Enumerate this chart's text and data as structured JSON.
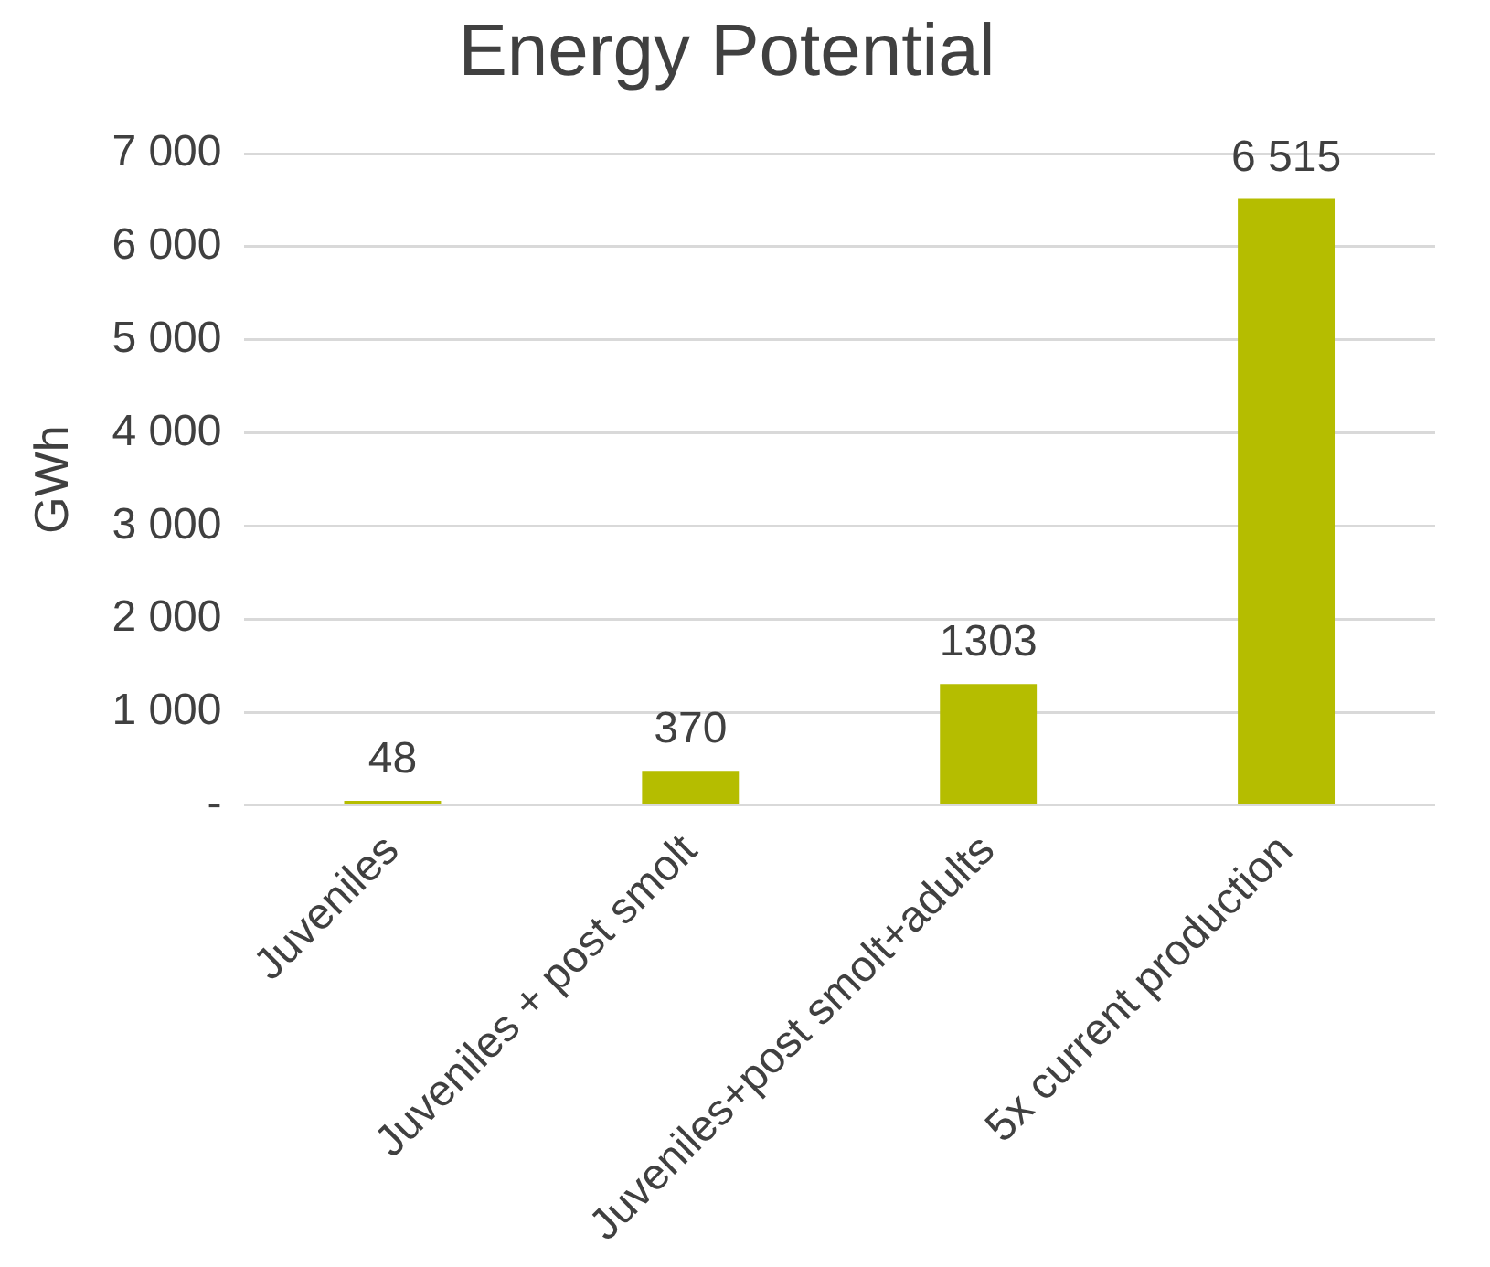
{
  "chart_data": {
    "type": "bar",
    "title": "Energy Potential",
    "ylabel": "GWh",
    "categories": [
      "Juveniles",
      "Juveniles + post smolt",
      "Juveniles+post smolt+adults",
      "5x current production"
    ],
    "values": [
      48,
      370,
      1303,
      6515
    ],
    "value_labels": [
      "48",
      "370",
      "1303",
      "6 515"
    ],
    "color": "#b5bd00",
    "ylim": [
      0,
      7000
    ],
    "yticks": [
      {
        "value": 0,
        "label": "-"
      },
      {
        "value": 1000,
        "label": "1 000"
      },
      {
        "value": 2000,
        "label": "2 000"
      },
      {
        "value": 3000,
        "label": "3 000"
      },
      {
        "value": 4000,
        "label": "4 000"
      },
      {
        "value": 5000,
        "label": "5 000"
      },
      {
        "value": 6000,
        "label": "6 000"
      },
      {
        "value": 7000,
        "label": "7 000"
      }
    ],
    "grid": "y",
    "legend": false
  }
}
